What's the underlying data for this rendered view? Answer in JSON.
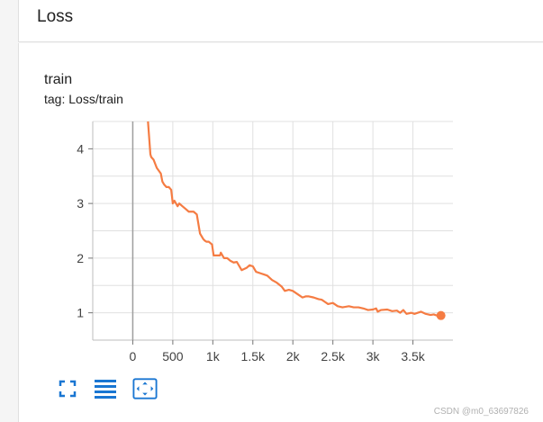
{
  "section": {
    "title": "Loss"
  },
  "card": {
    "title": "train",
    "tag": "tag: Loss/train"
  },
  "toolbar": {
    "buttons": [
      {
        "name": "fullscreen-icon"
      },
      {
        "name": "toggle-log-scale-icon"
      },
      {
        "name": "fit-domain-icon"
      }
    ],
    "icon_color": "#1976d2"
  },
  "watermark": "CSDN @m0_63697826",
  "chart_data": {
    "type": "line",
    "title": "",
    "xlabel": "",
    "ylabel": "",
    "xlim": [
      -500,
      4000
    ],
    "ylim": [
      0.5,
      4.5
    ],
    "x_ticks": [
      0,
      500,
      1000,
      1500,
      2000,
      2500,
      3000,
      3500
    ],
    "x_tick_labels": [
      "0",
      "500",
      "1k",
      "1.5k",
      "2k",
      "2.5k",
      "3k",
      "3.5k"
    ],
    "y_ticks": [
      1,
      2,
      3,
      4
    ],
    "y_tick_labels": [
      "1",
      "2",
      "3",
      "4"
    ],
    "grid": true,
    "line_color": "#f57c43",
    "series": [
      {
        "values_x": [
          190,
          200,
          220,
          230,
          260,
          300,
          350,
          370,
          390,
          420,
          450,
          480,
          500,
          520,
          540,
          560,
          580,
          620,
          660,
          700,
          760,
          800,
          840,
          880,
          900,
          920,
          950,
          990,
          1010,
          1050,
          1090,
          1100,
          1140,
          1180,
          1220,
          1260,
          1300,
          1360,
          1420,
          1460,
          1500,
          1540,
          1600,
          1640,
          1680,
          1740,
          1800,
          1860,
          1900,
          1950,
          2000,
          2020,
          2080,
          2120,
          2160,
          2200,
          2260,
          2320,
          2360,
          2400,
          2440,
          2500,
          2560,
          2620,
          2700,
          2760,
          2820,
          2880,
          2940,
          3000,
          3040,
          3060,
          3100,
          3180,
          3240,
          3300,
          3340,
          3380,
          3420,
          3480,
          3520,
          3600,
          3660,
          3720,
          3760,
          3800,
          3820,
          3840
        ],
        "values_y": [
          4.5,
          4.3,
          3.9,
          3.85,
          3.8,
          3.65,
          3.55,
          3.4,
          3.35,
          3.3,
          3.3,
          3.25,
          3.0,
          3.05,
          3.0,
          2.95,
          3.0,
          2.95,
          2.9,
          2.85,
          2.85,
          2.8,
          2.45,
          2.35,
          2.32,
          2.3,
          2.3,
          2.25,
          2.05,
          2.05,
          2.05,
          2.1,
          2.0,
          2.0,
          1.95,
          1.92,
          1.93,
          1.78,
          1.82,
          1.87,
          1.85,
          1.75,
          1.72,
          1.7,
          1.68,
          1.6,
          1.55,
          1.48,
          1.4,
          1.42,
          1.4,
          1.38,
          1.32,
          1.28,
          1.3,
          1.3,
          1.28,
          1.25,
          1.24,
          1.2,
          1.16,
          1.18,
          1.12,
          1.1,
          1.12,
          1.1,
          1.1,
          1.08,
          1.05,
          1.06,
          1.08,
          1.02,
          1.05,
          1.06,
          1.03,
          1.04,
          1.0,
          1.05,
          0.98,
          1.0,
          0.98,
          1.02,
          0.98,
          0.96,
          0.97,
          0.95,
          0.96,
          0.95
        ]
      }
    ],
    "last_point": {
      "x": 3850,
      "y": 0.95
    }
  }
}
